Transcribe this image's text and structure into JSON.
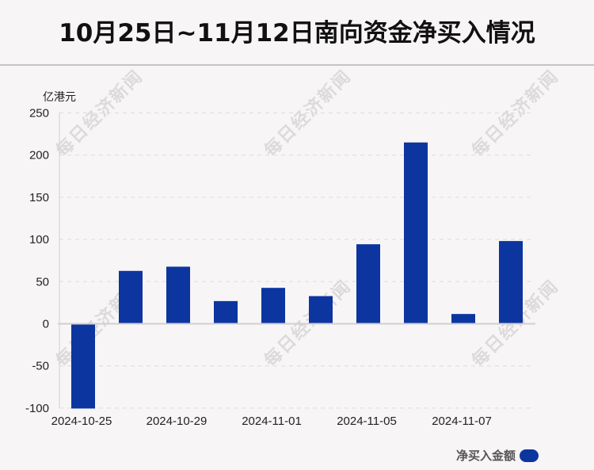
{
  "header": {
    "title": "10月25日~11月12日南向资金净买入情况"
  },
  "watermark": {
    "text": "每日经济新闻"
  },
  "legend": {
    "label": "净买入金额",
    "color": "#0c35a0"
  },
  "chart_data": {
    "type": "bar",
    "title": "10月25日~11月12日南向资金净买入情况",
    "xlabel": "",
    "ylabel": "亿港元",
    "ylim": [
      -100,
      250
    ],
    "yticks": [
      250,
      200,
      150,
      100,
      50,
      0,
      -50,
      -100
    ],
    "grid": true,
    "legend_position": "bottom-right",
    "categories": [
      "2024-10-25",
      "",
      "2024-10-29",
      "",
      "2024-11-01",
      "",
      "2024-11-05",
      "",
      "2024-11-07",
      ""
    ],
    "visible_tick_labels": [
      "2024-10-25",
      "2024-10-29",
      "2024-11-01",
      "2024-11-05",
      "2024-11-07"
    ],
    "series": [
      {
        "name": "净买入金额",
        "color": "#0c35a0",
        "values": [
          -100.5,
          62.7,
          67.7,
          26.9,
          42.6,
          32.8,
          94.3,
          215.0,
          11.6,
          98.1
        ]
      }
    ]
  }
}
